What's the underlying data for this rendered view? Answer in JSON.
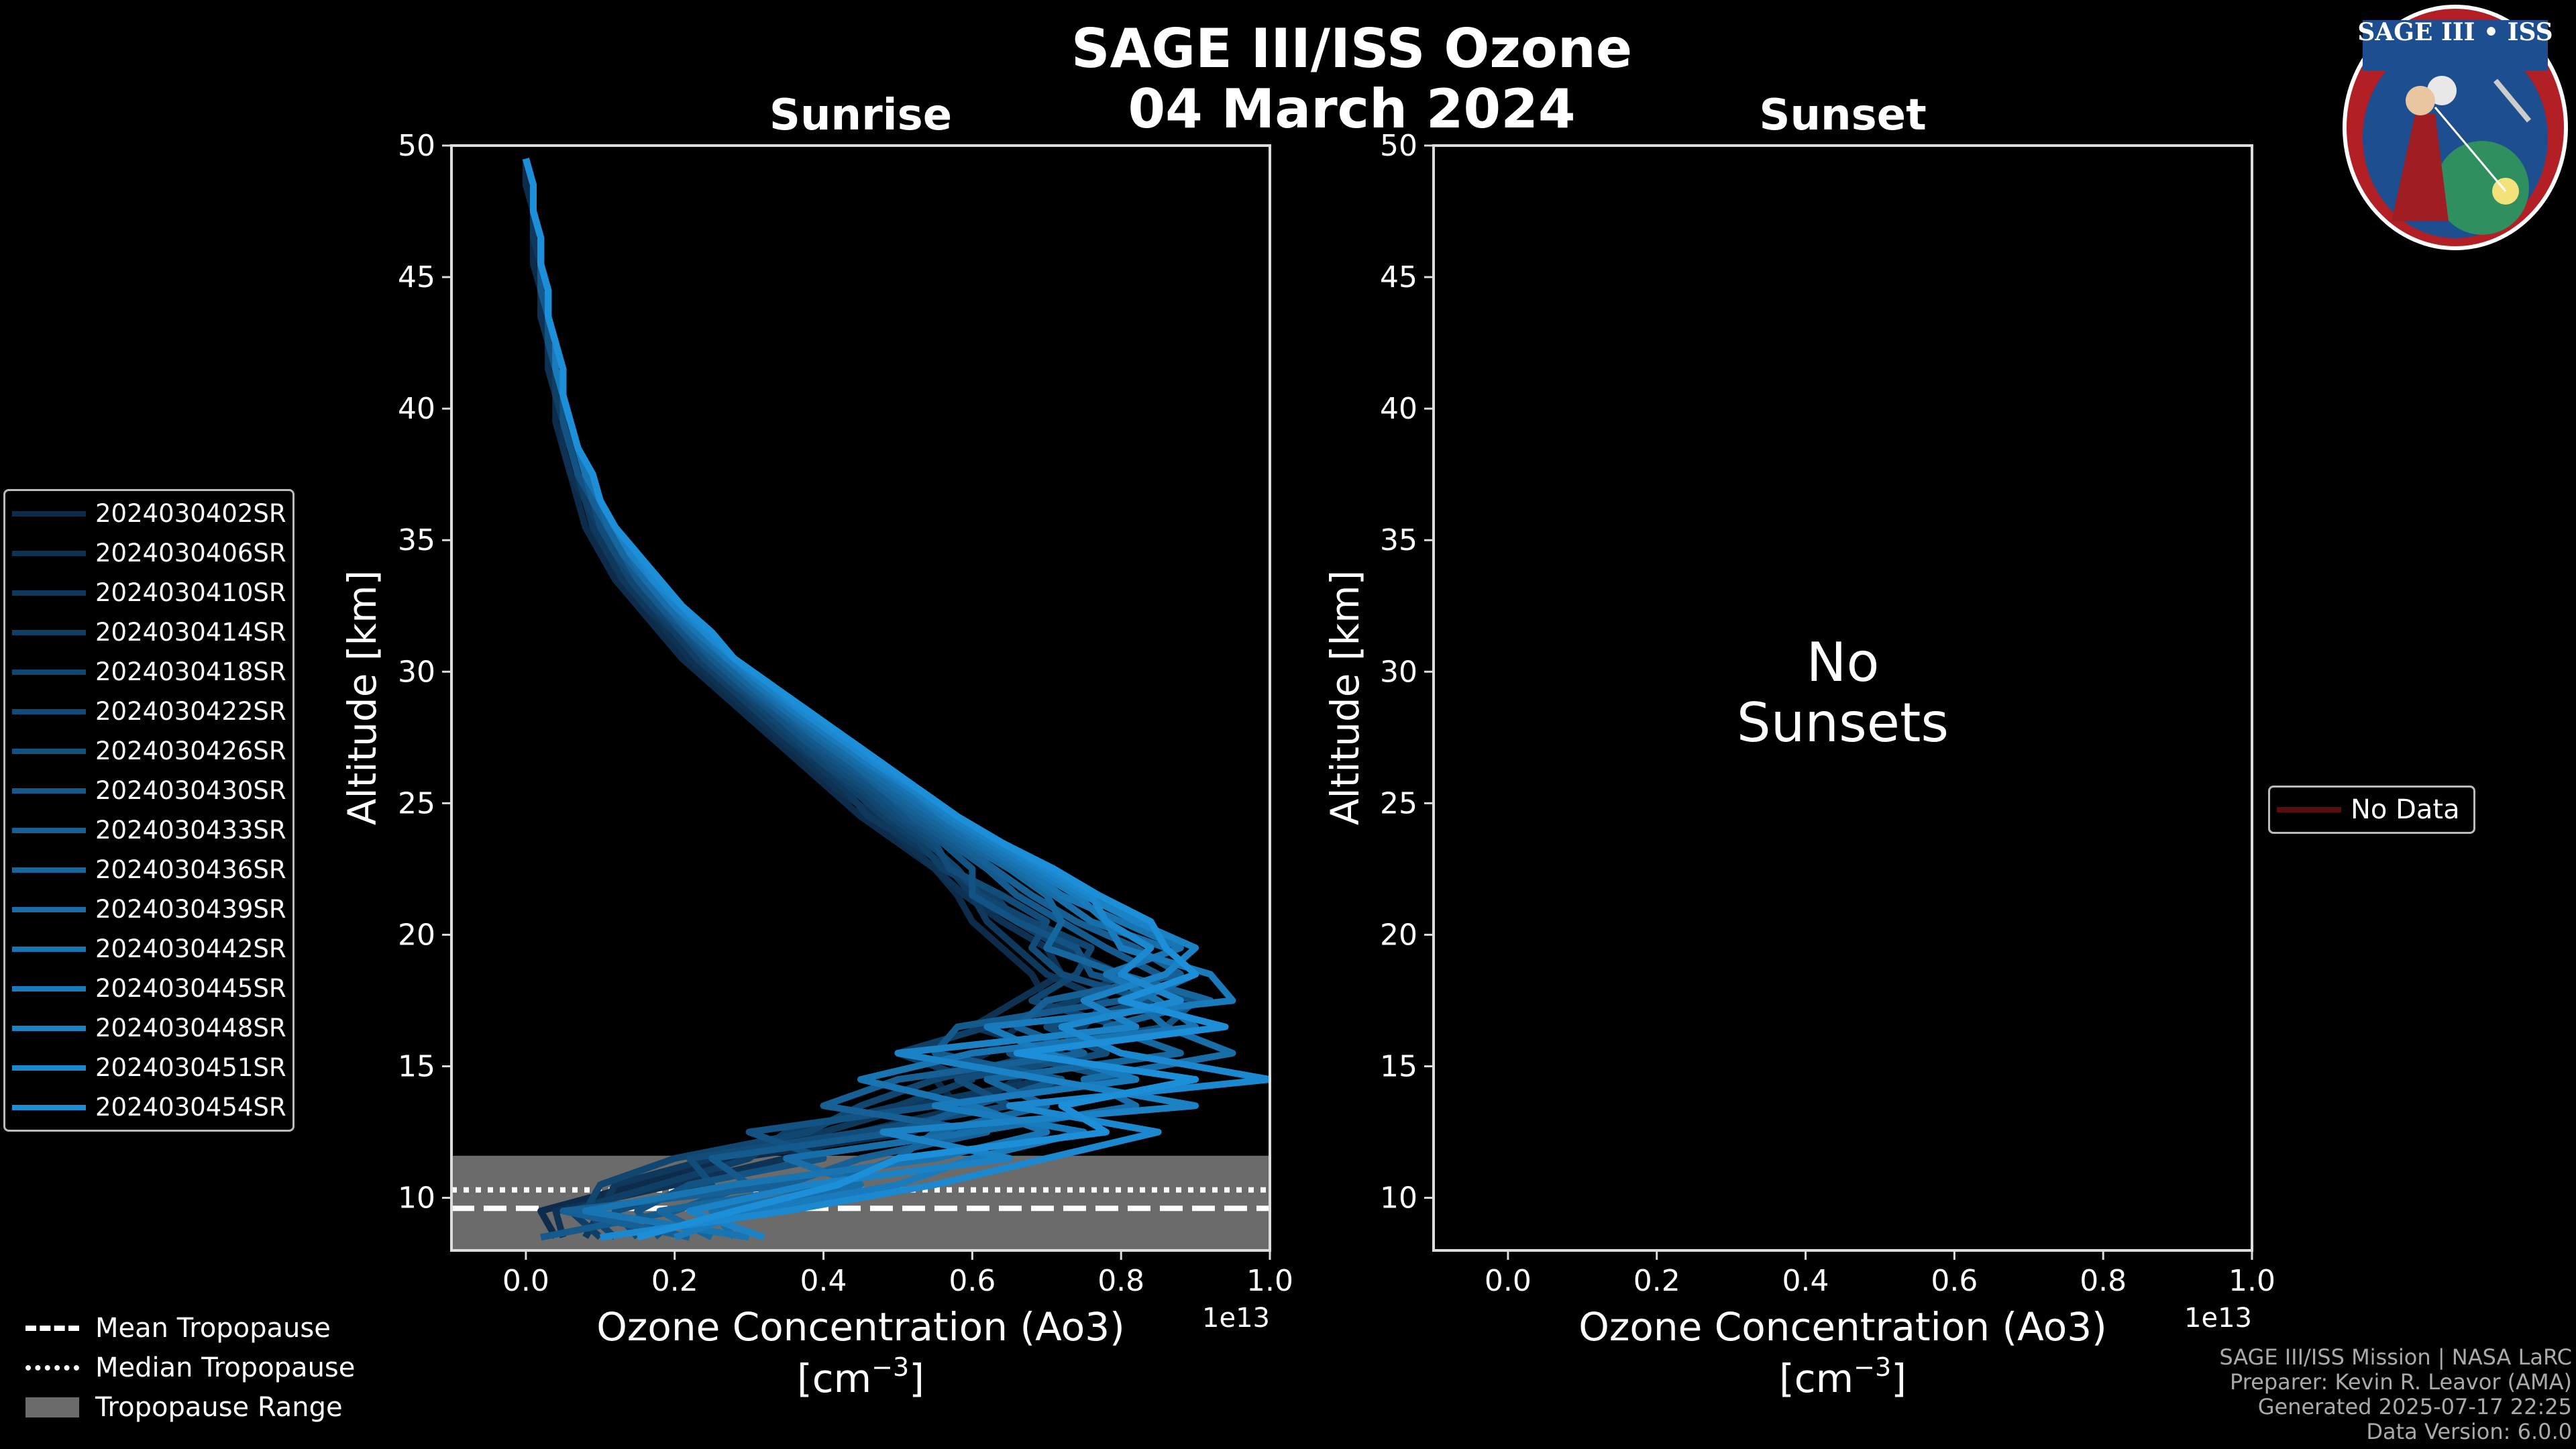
{
  "figure": {
    "title_line1": "SAGE III/ISS Ozone",
    "title_line2": "04 March 2024",
    "badge_text": "SAGE III • ISS",
    "footer": [
      "SAGE III/ISS Mission | NASA LaRC",
      "Preparer: Kevin R. Leavor (AMA)",
      "Generated 2025-07-17 22:25",
      "Data Version: 6.0.0"
    ]
  },
  "colors": {
    "background": "#000000",
    "sunrise_dark": "#0d2b4a",
    "sunrise_light": "#1d8fd8",
    "tropopause_fill": "#6b6b6b",
    "no_data_line": "#5a0d0d"
  },
  "sunrise_legend": {
    "entries": [
      "2024030402SR",
      "2024030406SR",
      "2024030410SR",
      "2024030414SR",
      "2024030418SR",
      "2024030422SR",
      "2024030426SR",
      "2024030430SR",
      "2024030433SR",
      "2024030436SR",
      "2024030439SR",
      "2024030442SR",
      "2024030445SR",
      "2024030448SR",
      "2024030451SR",
      "2024030454SR"
    ]
  },
  "tropopause_legend": {
    "mean": "Mean Tropopause",
    "median": "Median Tropopause",
    "range": "Tropopause Range"
  },
  "sunset_legend": {
    "no_data": "No Data"
  },
  "chart_data": [
    {
      "type": "line",
      "title": "Sunrise",
      "xlabel": "Ozone Concentration (Ao3)",
      "xlabel_units": "[cm",
      "xlabel_units_exp": "−3",
      "xlabel_units_close": "]",
      "x_offset_label": "1e13",
      "ylabel": "Altitude [km]",
      "xlim": [
        -0.1,
        1.0
      ],
      "ylim": [
        8,
        50
      ],
      "xticks": [
        0.0,
        0.2,
        0.4,
        0.6,
        0.8,
        1.0
      ],
      "xtick_labels": [
        "0.0",
        "0.2",
        "0.4",
        "0.6",
        "0.8",
        "1.0"
      ],
      "yticks": [
        10,
        15,
        20,
        25,
        30,
        35,
        40,
        45,
        50
      ],
      "ytick_labels": [
        "10",
        "15",
        "20",
        "25",
        "30",
        "35",
        "40",
        "45",
        "50"
      ],
      "tropopause": {
        "mean": 9.6,
        "median": 10.3,
        "range": [
          8.0,
          11.6
        ]
      },
      "altitudes": [
        8.5,
        9.5,
        10.5,
        11.5,
        12.5,
        13.5,
        14.5,
        15.5,
        16.5,
        17.5,
        18.5,
        19.5,
        20.5,
        21.5,
        22.5,
        23.5,
        24.5,
        25.5,
        26.5,
        27.5,
        28.5,
        29.5,
        30.5,
        31.5,
        32.5,
        33.5,
        34.5,
        35.5,
        36.5,
        37.5,
        38.5,
        39.5,
        40.5,
        41.5,
        42.5,
        43.5,
        44.5,
        45.5,
        46.5,
        47.5,
        48.5,
        49.5
      ],
      "series": [
        {
          "name": "2024030402SR",
          "values": [
            0.04,
            0.02,
            0.15,
            0.28,
            0.52,
            0.58,
            0.55,
            0.62,
            0.66,
            0.7,
            0.68,
            0.64,
            0.6,
            0.58,
            0.55,
            0.5,
            0.45,
            0.41,
            0.37,
            0.33,
            0.29,
            0.25,
            0.21,
            0.18,
            0.15,
            0.12,
            0.1,
            0.08,
            0.07,
            0.06,
            0.05,
            0.04,
            0.04,
            0.03,
            0.03,
            0.02,
            0.02,
            0.01,
            0.01,
            0.01,
            0.0,
            0.0
          ]
        },
        {
          "name": "2024030406SR",
          "values": [
            0.05,
            0.04,
            0.2,
            0.35,
            0.45,
            0.6,
            0.66,
            0.72,
            0.6,
            0.66,
            0.72,
            0.7,
            0.64,
            0.59,
            0.55,
            0.51,
            0.47,
            0.42,
            0.38,
            0.34,
            0.3,
            0.26,
            0.22,
            0.19,
            0.16,
            0.13,
            0.11,
            0.09,
            0.08,
            0.06,
            0.05,
            0.05,
            0.04,
            0.03,
            0.03,
            0.02,
            0.02,
            0.02,
            0.01,
            0.01,
            0.01,
            0.0
          ]
        },
        {
          "name": "2024030410SR",
          "values": [
            0.08,
            0.1,
            0.12,
            0.25,
            0.4,
            0.52,
            0.7,
            0.65,
            0.75,
            0.78,
            0.7,
            0.66,
            0.62,
            0.6,
            0.57,
            0.52,
            0.46,
            0.43,
            0.39,
            0.35,
            0.31,
            0.27,
            0.23,
            0.2,
            0.16,
            0.13,
            0.11,
            0.09,
            0.08,
            0.07,
            0.06,
            0.05,
            0.04,
            0.04,
            0.03,
            0.03,
            0.02,
            0.02,
            0.01,
            0.01,
            0.01,
            0.0
          ]
        },
        {
          "name": "2024030414SR",
          "values": [
            0.1,
            0.06,
            0.18,
            0.3,
            0.35,
            0.5,
            0.6,
            0.5,
            0.62,
            0.74,
            0.8,
            0.72,
            0.66,
            0.63,
            0.56,
            0.53,
            0.48,
            0.44,
            0.4,
            0.35,
            0.31,
            0.27,
            0.23,
            0.2,
            0.17,
            0.14,
            0.12,
            0.1,
            0.08,
            0.07,
            0.06,
            0.05,
            0.04,
            0.04,
            0.03,
            0.03,
            0.02,
            0.02,
            0.02,
            0.01,
            0.01,
            0.0
          ]
        },
        {
          "name": "2024030418SR",
          "values": [
            0.12,
            0.08,
            0.1,
            0.2,
            0.38,
            0.45,
            0.55,
            0.7,
            0.8,
            0.68,
            0.74,
            0.76,
            0.68,
            0.61,
            0.58,
            0.54,
            0.49,
            0.45,
            0.4,
            0.36,
            0.32,
            0.28,
            0.24,
            0.21,
            0.17,
            0.14,
            0.12,
            0.1,
            0.09,
            0.07,
            0.06,
            0.05,
            0.05,
            0.04,
            0.03,
            0.03,
            0.02,
            0.02,
            0.02,
            0.01,
            0.01,
            0.0
          ]
        },
        {
          "name": "2024030422SR",
          "values": [
            0.15,
            0.12,
            0.25,
            0.22,
            0.45,
            0.65,
            0.58,
            0.78,
            0.7,
            0.84,
            0.72,
            0.68,
            0.7,
            0.64,
            0.57,
            0.55,
            0.5,
            0.46,
            0.41,
            0.37,
            0.33,
            0.28,
            0.24,
            0.21,
            0.18,
            0.15,
            0.12,
            0.1,
            0.09,
            0.07,
            0.06,
            0.05,
            0.05,
            0.04,
            0.03,
            0.03,
            0.02,
            0.02,
            0.02,
            0.01,
            0.01,
            0.0
          ]
        },
        {
          "name": "2024030426SR",
          "values": [
            0.18,
            0.15,
            0.22,
            0.4,
            0.3,
            0.55,
            0.8,
            0.65,
            0.86,
            0.9,
            0.76,
            0.74,
            0.66,
            0.6,
            0.6,
            0.56,
            0.51,
            0.47,
            0.42,
            0.37,
            0.33,
            0.29,
            0.25,
            0.21,
            0.18,
            0.15,
            0.13,
            0.11,
            0.09,
            0.07,
            0.06,
            0.05,
            0.05,
            0.04,
            0.03,
            0.03,
            0.02,
            0.02,
            0.02,
            0.01,
            0.01,
            0.0
          ]
        },
        {
          "name": "2024030430SR",
          "values": [
            0.02,
            0.2,
            0.3,
            0.25,
            0.5,
            0.6,
            0.72,
            0.55,
            0.58,
            0.8,
            0.85,
            0.78,
            0.72,
            0.66,
            0.62,
            0.57,
            0.52,
            0.48,
            0.43,
            0.38,
            0.34,
            0.29,
            0.25,
            0.22,
            0.18,
            0.15,
            0.13,
            0.11,
            0.09,
            0.08,
            0.07,
            0.06,
            0.05,
            0.04,
            0.04,
            0.03,
            0.02,
            0.02,
            0.02,
            0.01,
            0.01,
            0.0
          ]
        },
        {
          "name": "2024030433SR",
          "values": [
            0.22,
            0.05,
            0.35,
            0.45,
            0.62,
            0.4,
            0.5,
            0.75,
            0.66,
            0.7,
            0.88,
            0.82,
            0.74,
            0.68,
            0.63,
            0.58,
            0.53,
            0.48,
            0.44,
            0.39,
            0.34,
            0.3,
            0.26,
            0.22,
            0.19,
            0.16,
            0.13,
            0.11,
            0.09,
            0.08,
            0.07,
            0.06,
            0.05,
            0.04,
            0.04,
            0.03,
            0.03,
            0.02,
            0.02,
            0.01,
            0.01,
            0.0
          ]
        },
        {
          "name": "2024030436SR",
          "values": [
            0.25,
            0.18,
            0.4,
            0.5,
            0.55,
            0.7,
            0.62,
            0.88,
            0.78,
            0.92,
            0.8,
            0.7,
            0.72,
            0.7,
            0.65,
            0.59,
            0.54,
            0.49,
            0.44,
            0.39,
            0.35,
            0.3,
            0.26,
            0.22,
            0.19,
            0.16,
            0.13,
            0.11,
            0.1,
            0.08,
            0.07,
            0.06,
            0.05,
            0.04,
            0.04,
            0.03,
            0.03,
            0.02,
            0.02,
            0.01,
            0.01,
            0.0
          ]
        },
        {
          "name": "2024030439SR",
          "values": [
            0.28,
            0.25,
            0.45,
            0.35,
            0.6,
            0.82,
            0.75,
            0.95,
            0.86,
            0.82,
            0.9,
            0.86,
            0.76,
            0.71,
            0.66,
            0.6,
            0.55,
            0.5,
            0.45,
            0.4,
            0.35,
            0.31,
            0.27,
            0.23,
            0.19,
            0.16,
            0.14,
            0.12,
            0.1,
            0.08,
            0.07,
            0.06,
            0.05,
            0.04,
            0.04,
            0.03,
            0.03,
            0.02,
            0.02,
            0.01,
            0.01,
            0.0
          ]
        },
        {
          "name": "2024030442SR",
          "values": [
            0.3,
            0.08,
            0.28,
            0.55,
            0.7,
            0.6,
            0.45,
            0.6,
            0.9,
            0.85,
            0.78,
            0.88,
            0.8,
            0.72,
            0.67,
            0.61,
            0.56,
            0.51,
            0.46,
            0.41,
            0.36,
            0.31,
            0.27,
            0.23,
            0.2,
            0.17,
            0.14,
            0.12,
            0.1,
            0.08,
            0.07,
            0.06,
            0.05,
            0.04,
            0.04,
            0.03,
            0.03,
            0.02,
            0.02,
            0.01,
            0.01,
            0.0
          ]
        },
        {
          "name": "2024030445SR",
          "values": [
            0.2,
            0.3,
            0.5,
            0.6,
            0.75,
            0.55,
            0.82,
            0.7,
            0.62,
            0.95,
            0.92,
            0.8,
            0.78,
            0.74,
            0.68,
            0.62,
            0.56,
            0.52,
            0.46,
            0.41,
            0.36,
            0.32,
            0.27,
            0.24,
            0.2,
            0.17,
            0.14,
            0.12,
            0.1,
            0.09,
            0.07,
            0.06,
            0.05,
            0.04,
            0.04,
            0.03,
            0.03,
            0.02,
            0.02,
            0.01,
            0.01,
            0.0
          ]
        },
        {
          "name": "2024030448SR",
          "values": [
            0.32,
            0.22,
            0.38,
            0.65,
            0.48,
            0.9,
            0.7,
            0.5,
            0.82,
            0.75,
            0.86,
            0.9,
            0.82,
            0.75,
            0.69,
            0.63,
            0.57,
            0.52,
            0.47,
            0.42,
            0.37,
            0.32,
            0.28,
            0.24,
            0.2,
            0.17,
            0.14,
            0.12,
            0.1,
            0.09,
            0.07,
            0.06,
            0.05,
            0.05,
            0.04,
            0.03,
            0.03,
            0.02,
            0.02,
            0.01,
            0.01,
            0.0
          ]
        },
        {
          "name": "2024030451SR",
          "values": [
            0.1,
            0.35,
            0.55,
            0.7,
            0.85,
            0.65,
            1.0,
            0.8,
            0.72,
            0.88,
            0.8,
            0.84,
            0.78,
            0.76,
            0.7,
            0.64,
            0.58,
            0.53,
            0.47,
            0.42,
            0.37,
            0.33,
            0.28,
            0.24,
            0.21,
            0.17,
            0.15,
            0.12,
            0.1,
            0.09,
            0.07,
            0.06,
            0.05,
            0.05,
            0.04,
            0.03,
            0.03,
            0.02,
            0.02,
            0.01,
            0.01,
            0.0
          ]
        },
        {
          "name": "2024030454SR",
          "values": [
            0.15,
            0.28,
            0.42,
            0.5,
            0.78,
            0.72,
            0.9,
            0.66,
            0.94,
            0.8,
            0.9,
            0.86,
            0.84,
            0.77,
            0.71,
            0.64,
            0.58,
            0.53,
            0.48,
            0.43,
            0.38,
            0.33,
            0.28,
            0.25,
            0.21,
            0.18,
            0.15,
            0.12,
            0.1,
            0.09,
            0.07,
            0.06,
            0.05,
            0.05,
            0.04,
            0.03,
            0.03,
            0.02,
            0.02,
            0.01,
            0.01,
            0.0
          ]
        }
      ]
    },
    {
      "type": "line",
      "title": "Sunset",
      "xlabel": "Ozone Concentration (Ao3)",
      "xlabel_units": "[cm",
      "xlabel_units_exp": "−3",
      "xlabel_units_close": "]",
      "x_offset_label": "1e13",
      "ylabel": "Altitude [km]",
      "xlim": [
        -0.1,
        1.0
      ],
      "ylim": [
        8,
        50
      ],
      "xticks": [
        0.0,
        0.2,
        0.4,
        0.6,
        0.8,
        1.0
      ],
      "xtick_labels": [
        "0.0",
        "0.2",
        "0.4",
        "0.6",
        "0.8",
        "1.0"
      ],
      "yticks": [
        10,
        15,
        20,
        25,
        30,
        35,
        40,
        45,
        50
      ],
      "ytick_labels": [
        "10",
        "15",
        "20",
        "25",
        "30",
        "35",
        "40",
        "45",
        "50"
      ],
      "message_line1": "No",
      "message_line2": "Sunsets",
      "series": []
    }
  ]
}
